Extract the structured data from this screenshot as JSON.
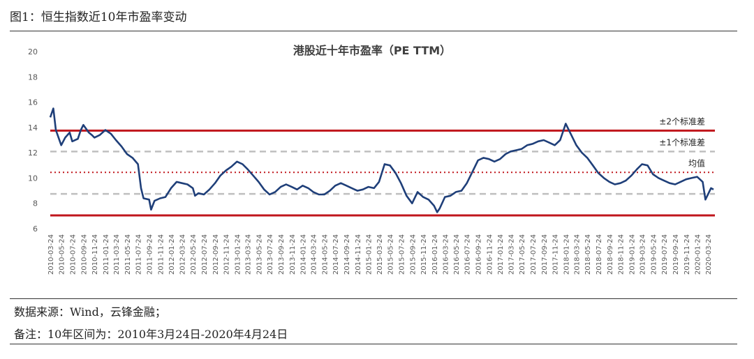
{
  "figure_title": "图1：恒生指数近10年市盈率变动",
  "source_note": "数据来源：Wind，云锋金融；",
  "remark_note": "备注：10年区间为：2010年3月24日-2020年4月24日",
  "colors": {
    "series": "#1f3f79",
    "sd2": "#c0161c",
    "mean": "#c0161c",
    "sd1": "#bfbfbf"
  },
  "chart_data": {
    "type": "line",
    "title": "港股近十年市盈率（PE TTM）",
    "xlabel": "",
    "ylabel": "",
    "ylim": [
      6,
      20
    ],
    "yticks": [
      6,
      8,
      10,
      12,
      14,
      16,
      18,
      20
    ],
    "grid": false,
    "x_ticks": [
      "2010-03-24",
      "2010-05-24",
      "2010-07-24",
      "2010-09-24",
      "2010-11-24",
      "2011-01-24",
      "2011-03-24",
      "2011-05-24",
      "2011-07-24",
      "2011-09-24",
      "2011-11-24",
      "2012-01-24",
      "2012-03-24",
      "2012-05-24",
      "2012-07-24",
      "2012-09-24",
      "2012-11-24",
      "2013-01-24",
      "2013-03-24",
      "2013-05-24",
      "2013-07-24",
      "2013-09-24",
      "2013-11-24",
      "2014-01-24",
      "2014-03-24",
      "2014-05-24",
      "2014-07-24",
      "2014-09-24",
      "2014-11-24",
      "2015-01-24",
      "2015-03-24",
      "2015-05-24",
      "2015-07-24",
      "2015-09-24",
      "2015-11-24",
      "2016-01-24",
      "2016-03-24",
      "2016-05-24",
      "2016-07-24",
      "2016-09-24",
      "2016-11-24",
      "2017-01-24",
      "2017-03-24",
      "2017-05-24",
      "2017-07-24",
      "2017-09-24",
      "2017-11-24",
      "2018-01-24",
      "2018-03-24",
      "2018-05-24",
      "2018-07-24",
      "2018-09-24",
      "2018-11-24",
      "2019-01-24",
      "2019-03-24",
      "2019-05-24",
      "2019-07-24",
      "2019-09-24",
      "2019-11-24",
      "2020-01-24",
      "2020-03-24"
    ],
    "reference_lines": [
      {
        "label": "±2个标准差",
        "values": [
          13.75,
          7.05
        ],
        "style": "solid"
      },
      {
        "label": "±1个标准差",
        "values": [
          12.1,
          8.75
        ],
        "style": "dashed"
      },
      {
        "label": "均值",
        "values": [
          10.45
        ],
        "style": "dotted"
      }
    ],
    "series": [
      {
        "x": [
          "2010-03-24",
          "2010-04-10",
          "2010-04-24",
          "2010-05-24",
          "2010-06-15",
          "2010-07-10",
          "2010-07-24",
          "2010-08-24",
          "2010-09-10",
          "2010-09-24",
          "2010-10-24",
          "2010-11-10",
          "2010-11-24",
          "2010-12-24",
          "2011-01-24",
          "2011-02-24",
          "2011-03-24",
          "2011-04-24",
          "2011-05-24",
          "2011-06-24",
          "2011-07-24",
          "2011-08-10",
          "2011-08-24",
          "2011-09-24",
          "2011-10-05",
          "2011-10-24",
          "2011-11-24",
          "2011-12-24",
          "2012-01-24",
          "2012-02-24",
          "2012-03-24",
          "2012-04-24",
          "2012-05-24",
          "2012-06-05",
          "2012-06-24",
          "2012-07-24",
          "2012-08-24",
          "2012-09-24",
          "2012-10-24",
          "2012-11-24",
          "2012-12-24",
          "2013-01-24",
          "2013-02-24",
          "2013-03-24",
          "2013-04-24",
          "2013-05-24",
          "2013-06-24",
          "2013-07-24",
          "2013-08-24",
          "2013-09-24",
          "2013-10-24",
          "2013-11-24",
          "2013-12-24",
          "2014-01-24",
          "2014-02-24",
          "2014-03-24",
          "2014-04-24",
          "2014-05-24",
          "2014-06-24",
          "2014-07-24",
          "2014-08-24",
          "2014-09-24",
          "2014-10-24",
          "2014-11-24",
          "2014-12-24",
          "2015-01-24",
          "2015-02-24",
          "2015-03-24",
          "2015-04-24",
          "2015-05-24",
          "2015-06-24",
          "2015-07-24",
          "2015-08-24",
          "2015-09-24",
          "2015-10-24",
          "2015-11-24",
          "2015-12-24",
          "2016-01-24",
          "2016-02-10",
          "2016-02-24",
          "2016-03-24",
          "2016-04-24",
          "2016-05-24",
          "2016-06-24",
          "2016-07-24",
          "2016-08-24",
          "2016-09-24",
          "2016-10-24",
          "2016-11-24",
          "2016-12-24",
          "2017-01-24",
          "2017-02-24",
          "2017-03-24",
          "2017-04-24",
          "2017-05-24",
          "2017-06-24",
          "2017-07-24",
          "2017-08-24",
          "2017-09-24",
          "2017-10-24",
          "2017-11-24",
          "2017-12-24",
          "2018-01-24",
          "2018-02-24",
          "2018-03-24",
          "2018-04-24",
          "2018-05-24",
          "2018-06-24",
          "2018-07-24",
          "2018-08-24",
          "2018-09-24",
          "2018-10-24",
          "2018-11-24",
          "2018-12-24",
          "2019-01-24",
          "2019-02-24",
          "2019-03-24",
          "2019-04-24",
          "2019-05-24",
          "2019-06-24",
          "2019-07-24",
          "2019-08-24",
          "2019-09-24",
          "2019-10-24",
          "2019-11-24",
          "2019-12-24",
          "2020-01-24",
          "2020-02-24",
          "2020-03-10",
          "2020-03-24",
          "2020-04-10",
          "2020-04-24"
        ],
        "values": [
          14.8,
          15.5,
          13.8,
          12.6,
          13.2,
          13.6,
          12.9,
          13.1,
          13.8,
          14.2,
          13.6,
          13.4,
          13.2,
          13.4,
          13.8,
          13.5,
          13.0,
          12.5,
          11.9,
          11.6,
          11.1,
          9.2,
          8.4,
          8.3,
          7.5,
          8.2,
          8.4,
          8.5,
          9.2,
          9.7,
          9.6,
          9.5,
          9.2,
          8.6,
          8.8,
          8.7,
          9.1,
          9.6,
          10.2,
          10.6,
          10.9,
          11.3,
          11.1,
          10.7,
          10.2,
          9.7,
          9.1,
          8.7,
          8.9,
          9.3,
          9.5,
          9.3,
          9.1,
          9.4,
          9.2,
          8.9,
          8.7,
          8.7,
          9.0,
          9.4,
          9.6,
          9.4,
          9.2,
          9.0,
          9.1,
          9.3,
          9.2,
          9.7,
          11.1,
          11.0,
          10.4,
          9.6,
          8.6,
          8.0,
          8.9,
          8.5,
          8.3,
          7.8,
          7.3,
          7.6,
          8.5,
          8.6,
          8.9,
          9.0,
          9.6,
          10.5,
          11.4,
          11.6,
          11.5,
          11.3,
          11.5,
          11.9,
          12.1,
          12.2,
          12.3,
          12.6,
          12.7,
          12.9,
          13.0,
          12.8,
          12.6,
          13.0,
          14.3,
          13.4,
          12.6,
          12.0,
          11.6,
          11.0,
          10.4,
          10.0,
          9.7,
          9.5,
          9.6,
          9.8,
          10.2,
          10.7,
          11.1,
          11.0,
          10.3,
          10.0,
          9.8,
          9.6,
          9.5,
          9.7,
          9.9,
          10.0,
          10.1,
          9.7,
          8.3,
          8.7,
          9.2,
          9.1
        ]
      }
    ]
  }
}
